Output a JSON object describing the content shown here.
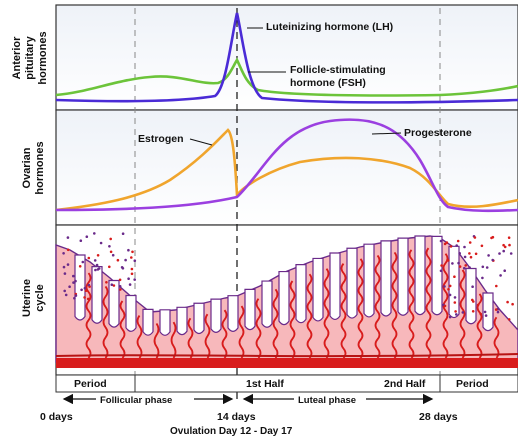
{
  "panels": {
    "pituitary": {
      "label_lines": [
        "Anterior",
        "pituitary",
        "hormones"
      ],
      "lh_label": "Luteinizing hormone (LH)",
      "fsh_label_lines": [
        "Follicle-stimulating",
        "hormone (FSH)"
      ]
    },
    "ovarian": {
      "label_lines": [
        "Ovarian",
        "hormones"
      ],
      "estrogen_label": "Estrogen",
      "progesterone_label": "Progesterone"
    },
    "uterine": {
      "label_lines": [
        "Uterine",
        "cycle"
      ]
    }
  },
  "phase_bar": {
    "period_start": "Period",
    "first_half": "1st Half",
    "second_half": "2nd Half",
    "period_end": "Period"
  },
  "phase_arrows": {
    "follicular": "Follicular phase",
    "luteal": "Luteal phase"
  },
  "day_axis": {
    "day0": "0 days",
    "day14": "14 days",
    "day28": "28 days",
    "ovulation": "Ovulation Day 12 - Day 17"
  },
  "colors": {
    "lh": "#4a2bd6",
    "fsh": "#6cc43a",
    "estrogen": "#f0a52d",
    "progesterone": "#9b3fe0",
    "tissue": "#f7b8bb",
    "vessel": "#d81c1c",
    "tissue_outline": "#6a2a8a"
  }
}
